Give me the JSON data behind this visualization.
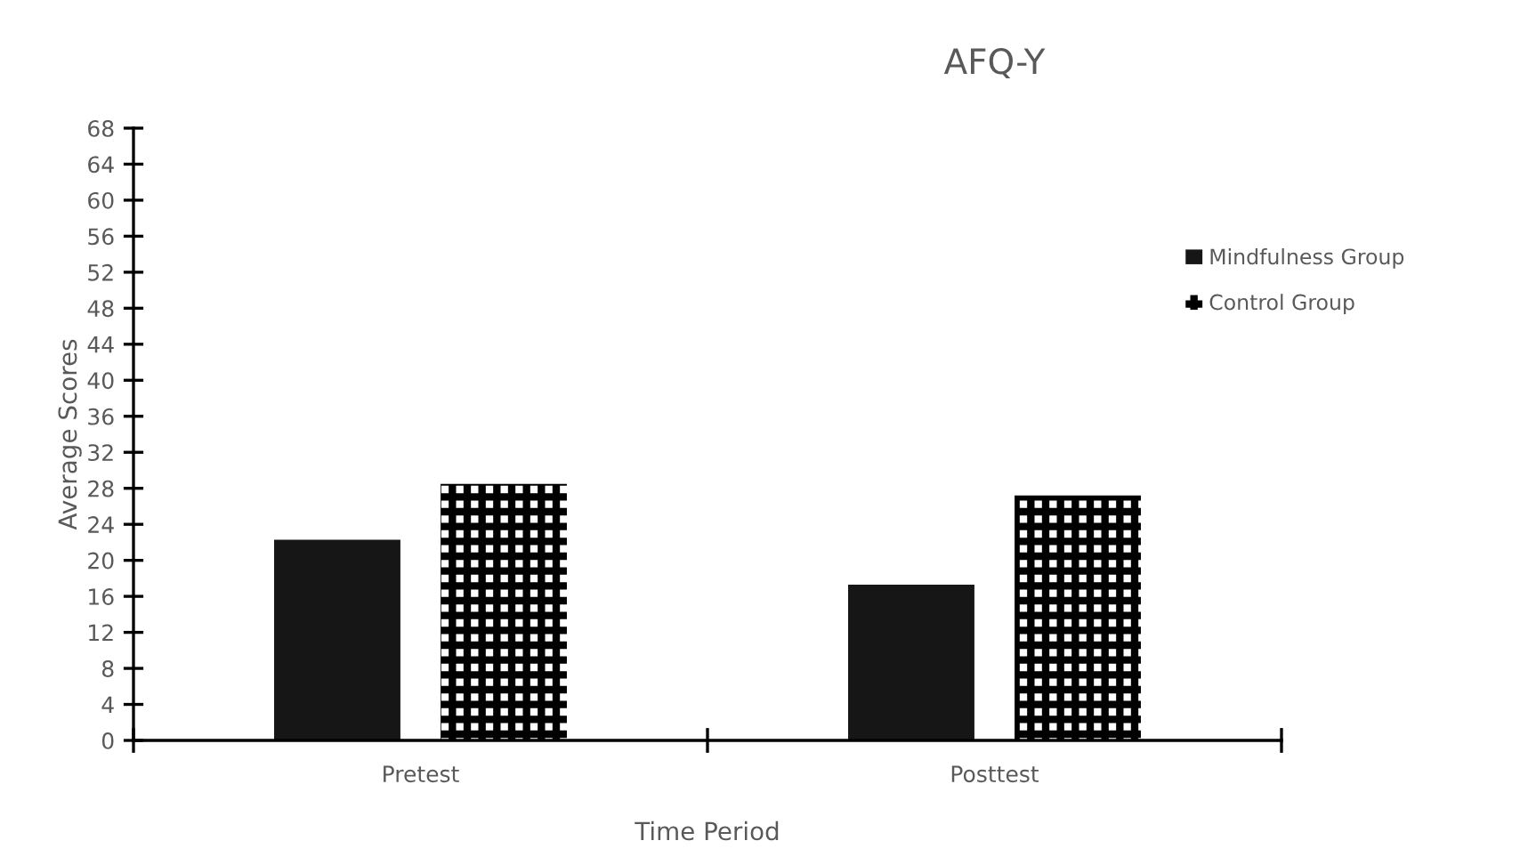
{
  "chart_data": {
    "type": "bar",
    "title": "AFQ-Y",
    "xlabel": "Time Period",
    "ylabel": "Average Scores",
    "categories": [
      "Pretest",
      "Posttest"
    ],
    "series": [
      {
        "name": "Mindfulness Group",
        "color": "#161616",
        "values": [
          22.3,
          17.3
        ]
      },
      {
        "name": "Control Group",
        "color": "#000000",
        "values": [
          28.5,
          27.2
        ]
      }
    ],
    "ylim": [
      0,
      68
    ],
    "yticks": [
      0,
      4,
      8,
      12,
      16,
      20,
      24,
      28,
      32,
      36,
      40,
      44,
      48,
      52,
      56,
      60,
      64,
      68
    ],
    "grid": false,
    "legend": "right"
  }
}
